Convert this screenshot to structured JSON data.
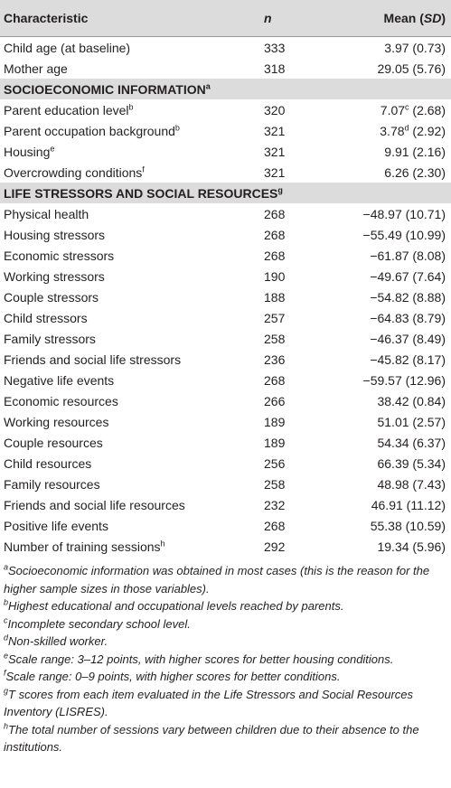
{
  "table": {
    "header": {
      "characteristic": "Characteristic",
      "n": "n",
      "mean": [
        "Mean (",
        "SD",
        ")"
      ]
    },
    "rows": [
      {
        "label": "Child age (at baseline)",
        "n": 333,
        "mean": "3.97",
        "sd": "(0.73)"
      },
      {
        "label": "Mother age",
        "n": 318,
        "mean": "29.05",
        "sd": "(5.76)"
      },
      {
        "section": "SOCIOECONOMIC INFORMATION",
        "note": "a"
      },
      {
        "label": "Parent education level",
        "label_note": "b",
        "n": 320,
        "mean": "7.07",
        "mean_note": "c",
        "sd": "(2.68)"
      },
      {
        "label": "Parent occupation background",
        "label_note": "b",
        "n": 321,
        "mean": "3.78",
        "mean_note": "d",
        "sd": "(2.92)"
      },
      {
        "label": "Housing",
        "label_note": "e",
        "n": 321,
        "mean": "9.91",
        "sd": "(2.16)"
      },
      {
        "label": "Overcrowding conditions",
        "label_note": "f",
        "n": 321,
        "mean": "6.26",
        "sd": "(2.30)"
      },
      {
        "section": "LIFE STRESSORS AND SOCIAL RESOURCES",
        "note": "g"
      },
      {
        "label": "Physical health",
        "n": 268,
        "mean": "−48.97",
        "sd": "(10.71)"
      },
      {
        "label": "Housing stressors",
        "n": 268,
        "mean": "−55.49",
        "sd": "(10.99)"
      },
      {
        "label": "Economic stressors",
        "n": 268,
        "mean": "−61.87",
        "sd": "(8.08)"
      },
      {
        "label": "Working stressors",
        "n": 190,
        "mean": "−49.67",
        "sd": "(7.64)"
      },
      {
        "label": "Couple stressors",
        "n": 188,
        "mean": "−54.82",
        "sd": "(8.88)"
      },
      {
        "label": "Child stressors",
        "n": 257,
        "mean": "−64.83",
        "sd": "(8.79)"
      },
      {
        "label": "Family stressors",
        "n": 258,
        "mean": "−46.37",
        "sd": "(8.49)"
      },
      {
        "label": "Friends and social life stressors",
        "n": 236,
        "mean": "−45.82",
        "sd": "(8.17)"
      },
      {
        "label": "Negative life events",
        "n": 268,
        "mean": "−59.57",
        "sd": "(12.96)"
      },
      {
        "label": "Economic resources",
        "n": 266,
        "mean": "38.42",
        "sd": "(0.84)"
      },
      {
        "label": "Working resources",
        "n": 189,
        "mean": "51.01",
        "sd": "(2.57)"
      },
      {
        "label": "Couple resources",
        "n": 189,
        "mean": "54.34",
        "sd": "(6.37)"
      },
      {
        "label": "Child resources",
        "n": 256,
        "mean": "66.39",
        "sd": "(5.34)"
      },
      {
        "label": "Family resources",
        "n": 258,
        "mean": "48.98",
        "sd": "(7.43)"
      },
      {
        "label": "Friends and social life resources",
        "n": 232,
        "mean": "46.91",
        "sd": "(11.12)"
      },
      {
        "label": "Positive life events",
        "n": 268,
        "mean": "55.38",
        "sd": "(10.59)"
      },
      {
        "label": "Number of training sessions",
        "label_note": "h",
        "n": 292,
        "mean": "19.34",
        "sd": "(5.96)"
      }
    ],
    "footnotes": [
      {
        "mark": "a",
        "text": "Socioeconomic information was obtained in most cases (this is the reason for the higher sample sizes in those variables)."
      },
      {
        "mark": "b",
        "text": "Highest educational and occupational levels reached by parents."
      },
      {
        "mark": "c",
        "text": "Incomplete secondary school level."
      },
      {
        "mark": "d",
        "text": "Non-skilled worker."
      },
      {
        "mark": "e",
        "text": "Scale range: 3–12 points, with higher scores for better housing conditions."
      },
      {
        "mark": "f",
        "text": "Scale range: 0–9 points, with higher scores for better conditions."
      },
      {
        "mark": "g",
        "text": "T scores from each item evaluated in the Life Stressors and Social Resources Inventory (LISRES)."
      },
      {
        "mark": "h",
        "text": "The total number of sessions vary between children due to their absence to the institutions."
      }
    ]
  }
}
